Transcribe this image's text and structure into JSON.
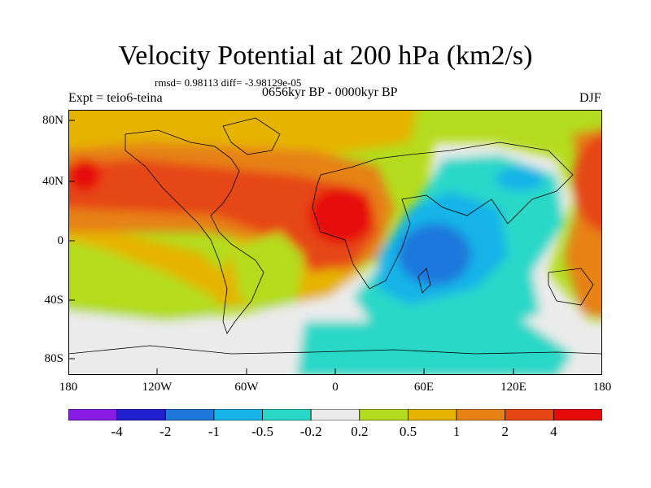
{
  "title": "Velocity Potential at 200 hPa (km2/s)",
  "stats": "rmsd= 0.98113 diff= -3.98129e-05",
  "experiment": "Expt = teio6-teina",
  "period": "0656kyr BP - 0000kyr BP",
  "season": "DJF",
  "lat_labels": [
    "80N",
    "40N",
    "0",
    "40S",
    "80S"
  ],
  "lon_labels": [
    "180",
    "120W",
    "60W",
    "0",
    "60E",
    "120E",
    "180"
  ],
  "colorbar": {
    "labels": [
      "-4",
      "-2",
      "-1",
      "-0.5",
      "-0.2",
      "0.2",
      "0.5",
      "1",
      "2",
      "4"
    ],
    "colors": [
      "#8a1ae6",
      "#2020d0",
      "#1e78dc",
      "#16b4e8",
      "#2ad8c8",
      "#ebebeb",
      "#b4dc1e",
      "#e6b400",
      "#e68214",
      "#e64614",
      "#e60a0a"
    ]
  },
  "colors": {
    "land_outline": "#000000",
    "frame": "#000000"
  }
}
